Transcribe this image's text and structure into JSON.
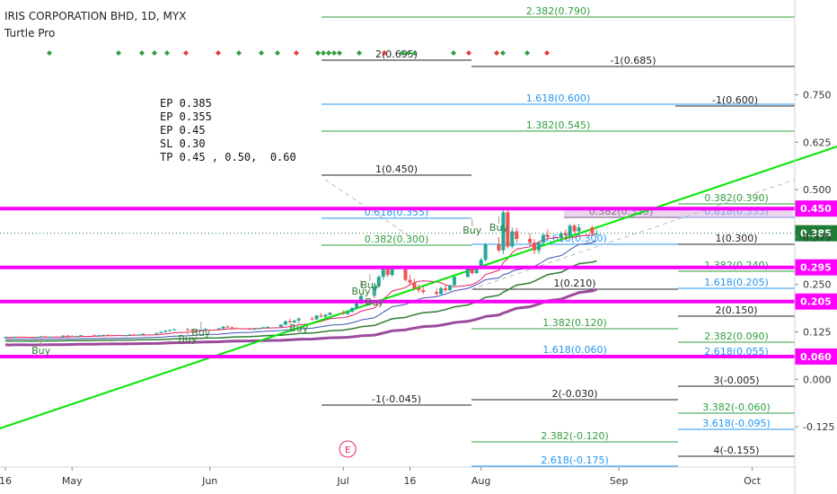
{
  "header": {
    "title": "IRIS CORPORATION BHD, 1D, MYX",
    "indicator": "Turtle Pro"
  },
  "notes": [
    "EP 0.385",
    "EP 0.355",
    "EP 0.45",
    "SL 0.30",
    "TP 0.45 , 0.50,  0.60"
  ],
  "earnings_marker": "E",
  "colors": {
    "up": "#26a69a",
    "down": "#ef5350",
    "magenta": "#ff00ff",
    "trend": "#00e600",
    "fib_green": "#2e9e3e",
    "fib_blue": "#2196f3",
    "fib_black": "#222222",
    "ma_purple": "#9c4a9c",
    "price_tag": "#1e7c34"
  },
  "chart_data": {
    "type": "candlestick",
    "symbol": "IRIS CORPORATION BHD",
    "interval": "1D",
    "exchange": "MYX",
    "y_axis_ticks": [
      "0.750",
      "0.625",
      "0.500",
      "0.375",
      "0.250",
      "0.125",
      "0.000",
      "-0.125"
    ],
    "x_axis_ticks": [
      "16",
      "May",
      "Jun",
      "Jul",
      "16",
      "Aug",
      "Sep",
      "Oct"
    ],
    "current_price": "0.385",
    "horizontal_levels": [
      {
        "label": "0.450",
        "value": 0.45
      },
      {
        "label": "0.295",
        "value": 0.295
      },
      {
        "label": "0.205",
        "value": 0.205
      },
      {
        "label": "0.060",
        "value": 0.06
      }
    ],
    "trend_line": {
      "start": {
        "date": "2019-04-07",
        "price": -0.16
      },
      "end": {
        "date": "2019-10-23",
        "price": 0.625
      }
    },
    "candles": [
      [
        0.11,
        0.112,
        0.109,
        0.111
      ],
      [
        0.111,
        0.112,
        0.109,
        0.11
      ],
      [
        0.11,
        0.113,
        0.109,
        0.112
      ],
      [
        0.112,
        0.113,
        0.11,
        0.111
      ],
      [
        0.111,
        0.112,
        0.108,
        0.109
      ],
      [
        0.109,
        0.112,
        0.108,
        0.111
      ],
      [
        0.111,
        0.114,
        0.11,
        0.113
      ],
      [
        0.113,
        0.114,
        0.11,
        0.111
      ],
      [
        0.111,
        0.113,
        0.11,
        0.112
      ],
      [
        0.112,
        0.116,
        0.111,
        0.115
      ],
      [
        0.115,
        0.117,
        0.113,
        0.114
      ],
      [
        0.114,
        0.116,
        0.112,
        0.113
      ],
      [
        0.113,
        0.115,
        0.112,
        0.114
      ],
      [
        0.114,
        0.117,
        0.113,
        0.116
      ],
      [
        0.116,
        0.118,
        0.114,
        0.115
      ],
      [
        0.115,
        0.117,
        0.114,
        0.116
      ],
      [
        0.116,
        0.118,
        0.115,
        0.117
      ],
      [
        0.117,
        0.119,
        0.115,
        0.116
      ],
      [
        0.116,
        0.118,
        0.114,
        0.115
      ],
      [
        0.115,
        0.117,
        0.114,
        0.116
      ],
      [
        0.116,
        0.119,
        0.115,
        0.118
      ],
      [
        0.118,
        0.12,
        0.116,
        0.117
      ],
      [
        0.117,
        0.119,
        0.116,
        0.118
      ],
      [
        0.118,
        0.121,
        0.117,
        0.12
      ],
      [
        0.12,
        0.123,
        0.118,
        0.122
      ],
      [
        0.122,
        0.126,
        0.121,
        0.125
      ],
      [
        0.125,
        0.13,
        0.123,
        0.128
      ],
      [
        0.128,
        0.132,
        0.126,
        0.13
      ],
      [
        0.13,
        0.134,
        0.128,
        0.132
      ],
      [
        0.132,
        0.135,
        0.13,
        0.131
      ],
      [
        0.131,
        0.133,
        0.128,
        0.13
      ],
      [
        0.13,
        0.132,
        0.128,
        0.129
      ],
      [
        0.129,
        0.132,
        0.127,
        0.131
      ],
      [
        0.131,
        0.134,
        0.13,
        0.133
      ],
      [
        0.133,
        0.136,
        0.131,
        0.134
      ],
      [
        0.134,
        0.14,
        0.133,
        0.139
      ],
      [
        0.139,
        0.142,
        0.136,
        0.137
      ],
      [
        0.137,
        0.139,
        0.134,
        0.135
      ],
      [
        0.135,
        0.137,
        0.132,
        0.133
      ],
      [
        0.133,
        0.135,
        0.13,
        0.131
      ],
      [
        0.131,
        0.134,
        0.13,
        0.133
      ],
      [
        0.133,
        0.136,
        0.132,
        0.135
      ],
      [
        0.135,
        0.138,
        0.134,
        0.137
      ],
      [
        0.137,
        0.14,
        0.135,
        0.138
      ],
      [
        0.138,
        0.145,
        0.137,
        0.144
      ],
      [
        0.144,
        0.155,
        0.142,
        0.153
      ],
      [
        0.153,
        0.16,
        0.148,
        0.15
      ],
      [
        0.15,
        0.156,
        0.148,
        0.155
      ],
      [
        0.155,
        0.162,
        0.153,
        0.16
      ],
      [
        0.16,
        0.165,
        0.156,
        0.158
      ],
      [
        0.158,
        0.17,
        0.157,
        0.168
      ],
      [
        0.168,
        0.175,
        0.163,
        0.165
      ],
      [
        0.165,
        0.172,
        0.162,
        0.17
      ],
      [
        0.17,
        0.178,
        0.168,
        0.175
      ],
      [
        0.175,
        0.182,
        0.17,
        0.172
      ],
      [
        0.172,
        0.18,
        0.17,
        0.178
      ],
      [
        0.178,
        0.19,
        0.176,
        0.188
      ],
      [
        0.188,
        0.205,
        0.185,
        0.2
      ],
      [
        0.2,
        0.225,
        0.198,
        0.22
      ],
      [
        0.22,
        0.25,
        0.215,
        0.245
      ],
      [
        0.245,
        0.275,
        0.24,
        0.27
      ],
      [
        0.27,
        0.3,
        0.262,
        0.29
      ],
      [
        0.29,
        0.3,
        0.27,
        0.275
      ],
      [
        0.275,
        0.3,
        0.27,
        0.29
      ],
      [
        0.29,
        0.295,
        0.258,
        0.262
      ],
      [
        0.262,
        0.275,
        0.25,
        0.255
      ],
      [
        0.255,
        0.265,
        0.235,
        0.24
      ],
      [
        0.24,
        0.25,
        0.228,
        0.235
      ],
      [
        0.235,
        0.245,
        0.225,
        0.23
      ],
      [
        0.23,
        0.24,
        0.22,
        0.225
      ],
      [
        0.225,
        0.245,
        0.22,
        0.24
      ],
      [
        0.24,
        0.248,
        0.23,
        0.235
      ],
      [
        0.235,
        0.25,
        0.232,
        0.248
      ],
      [
        0.248,
        0.275,
        0.245,
        0.27
      ],
      [
        0.27,
        0.3,
        0.268,
        0.295
      ],
      [
        0.295,
        0.3,
        0.275,
        0.28
      ],
      [
        0.28,
        0.3,
        0.278,
        0.295
      ],
      [
        0.295,
        0.32,
        0.29,
        0.315
      ],
      [
        0.315,
        0.36,
        0.31,
        0.355
      ],
      [
        0.355,
        0.375,
        0.335,
        0.34
      ],
      [
        0.34,
        0.45,
        0.33,
        0.44
      ],
      [
        0.44,
        0.45,
        0.345,
        0.35
      ],
      [
        0.35,
        0.4,
        0.345,
        0.39
      ],
      [
        0.39,
        0.4,
        0.36,
        0.37
      ],
      [
        0.37,
        0.385,
        0.35,
        0.36
      ],
      [
        0.36,
        0.37,
        0.33,
        0.34
      ],
      [
        0.34,
        0.365,
        0.33,
        0.36
      ],
      [
        0.36,
        0.385,
        0.355,
        0.38
      ],
      [
        0.38,
        0.395,
        0.37,
        0.375
      ],
      [
        0.375,
        0.39,
        0.365,
        0.385
      ],
      [
        0.385,
        0.395,
        0.37,
        0.38
      ],
      [
        0.38,
        0.41,
        0.375,
        0.405
      ],
      [
        0.405,
        0.41,
        0.385,
        0.39
      ],
      [
        0.39,
        0.41,
        0.38,
        0.4
      ],
      [
        0.4,
        0.405,
        0.38,
        0.385
      ],
      [
        0.385,
        0.395,
        0.378,
        0.385
      ]
    ],
    "signals": [
      {
        "label": "Buy",
        "date": "2019-04-24"
      },
      {
        "label": "Buy",
        "date": "2019-05-27"
      },
      {
        "label": "Buy",
        "date": "2019-05-30"
      },
      {
        "label": "Buy",
        "date": "2019-06-21"
      },
      {
        "label": "Buy",
        "date": "2019-07-05"
      },
      {
        "label": "Buy",
        "date": "2019-07-07"
      },
      {
        "label": "Buy",
        "date": "2019-07-08"
      },
      {
        "label": "Buy",
        "date": "2019-07-30"
      },
      {
        "label": "Buy",
        "date": "2019-08-05"
      }
    ],
    "fib_labels": [
      {
        "text": "2.382(0.790)",
        "color": "green"
      },
      {
        "text": "2(0.695)",
        "color": "black"
      },
      {
        "text": "-1(0.685)",
        "color": "black"
      },
      {
        "text": "1.618(0.600)",
        "color": "blue"
      },
      {
        "text": "-1(0.600)",
        "color": "black"
      },
      {
        "text": "1.382(0.545)",
        "color": "green"
      },
      {
        "text": "1(0.450)",
        "color": "black"
      },
      {
        "text": "0.382(0.390)",
        "color": "green"
      },
      {
        "text": "0.618(0.355)",
        "color": "blue"
      },
      {
        "text": "0.382(0.355)",
        "color": "black"
      },
      {
        "text": "0.618(0.355)",
        "color": "blue"
      },
      {
        "text": "0.382(0.300)",
        "color": "green"
      },
      {
        "text": "0.618(0.300)",
        "color": "blue"
      },
      {
        "text": "1(0.300)",
        "color": "black"
      },
      {
        "text": "1.382(0.240)",
        "color": "green"
      },
      {
        "text": "1(0.210)",
        "color": "black"
      },
      {
        "text": "1.618(0.205)",
        "color": "blue"
      },
      {
        "text": "2(0.150)",
        "color": "black"
      },
      {
        "text": "1.382(0.120)",
        "color": "green"
      },
      {
        "text": "2.382(0.090)",
        "color": "green"
      },
      {
        "text": "1.618(0.060)",
        "color": "blue"
      },
      {
        "text": "2.618(0.055)",
        "color": "blue"
      },
      {
        "text": "3(-0.005)",
        "color": "black"
      },
      {
        "text": "-1(-0.045)",
        "color": "black"
      },
      {
        "text": "2(-0.030)",
        "color": "black"
      },
      {
        "text": "3.382(-0.060)",
        "color": "green"
      },
      {
        "text": "3.618(-0.095)",
        "color": "blue"
      },
      {
        "text": "2.382(-0.120)",
        "color": "green"
      },
      {
        "text": "4(-0.155)",
        "color": "black"
      },
      {
        "text": "2.618(-0.175)",
        "color": "blue"
      }
    ]
  }
}
